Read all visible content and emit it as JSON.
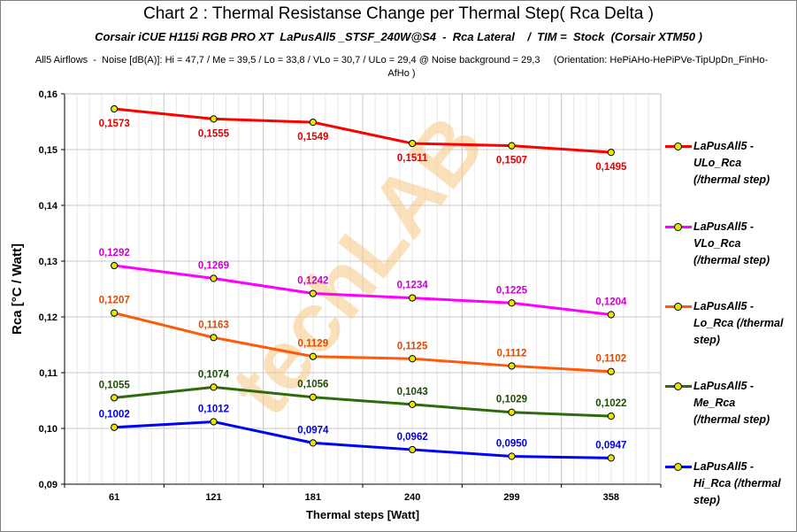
{
  "title": "Chart 2 :  Thermal Resistanse Change per Thermal Step( Rca  Delta )",
  "subtitle": "Corsair iCUE H115i RGB PRO XT  LaPusAll5 _STSF_240W@S4  -  Rca Lateral    /  TIM =  Stock  (Corsair XTM50 )",
  "note": "All5 Airflows  -  Noise [dB(A)]: Hi = 47,7 / Me = 39,5 / Lo = 33,8 / VLo = 30,7 / ULo = 29,4 @ Noise background = 29,3     (Orientation: HePiAHo-HePiPVe-TipUpDn_FinHo-AfHo )",
  "watermark": "techLAB",
  "colors": {
    "marker_fill": "#e6e600",
    "grid": "#d9d9d9"
  },
  "chart_data": {
    "type": "line",
    "xlabel": "Thermal steps  [Watt]",
    "ylabel": "Rca  [°C / Watt]",
    "ylim": [
      0.09,
      0.16
    ],
    "yticks": [
      "0,09",
      "0,10",
      "0,11",
      "0,12",
      "0,13",
      "0,14",
      "0,15",
      "0,16"
    ],
    "ytick_values": [
      0.09,
      0.1,
      0.11,
      0.12,
      0.13,
      0.14,
      0.15,
      0.16
    ],
    "categories": [
      "61",
      "121",
      "181",
      "240",
      "299",
      "358"
    ],
    "series": [
      {
        "name": "LaPusAll5 - ULo_Rca (/thermal step)",
        "legend_lines": [
          "LaPusAll5 -",
          "ULo_Rca",
          "(/thermal step)"
        ],
        "color": "#ff0000",
        "label_color": "#e00000",
        "values": [
          0.1573,
          0.1555,
          0.1549,
          0.1511,
          0.1507,
          0.1495
        ],
        "labels": [
          "0,1573",
          "0,1555",
          "0,1549",
          "0,1511",
          "0,1507",
          "0,1495"
        ],
        "label_pos": "below"
      },
      {
        "name": "LaPusAll5 - VLo_Rca (/thermal step)",
        "legend_lines": [
          "LaPusAll5 -",
          "VLo_Rca",
          "(/thermal step)"
        ],
        "color": "#ff00ff",
        "label_color": "#d000d0",
        "values": [
          0.1292,
          0.1269,
          0.1242,
          0.1234,
          0.1225,
          0.1204
        ],
        "labels": [
          "0,1292",
          "0,1269",
          "0,1242",
          "0,1234",
          "0,1225",
          "0,1204"
        ],
        "label_pos": "above"
      },
      {
        "name": "LaPusAll5 - Lo_Rca (/thermal step)",
        "legend_lines": [
          "LaPusAll5 -",
          "Lo_Rca (/thermal",
          "step)"
        ],
        "color": "#ff5a0a",
        "label_color": "#e04a00",
        "values": [
          0.1207,
          0.1163,
          0.1129,
          0.1125,
          0.1112,
          0.1102
        ],
        "labels": [
          "0,1207",
          "0,1163",
          "0,1129",
          "0,1125",
          "0,1112",
          "0,1102"
        ],
        "label_pos": "above"
      },
      {
        "name": "LaPusAll5 - Me_Rca (/thermal step)",
        "legend_lines": [
          "LaPusAll5 -",
          "Me_Rca",
          "(/thermal step)"
        ],
        "color": "#2e6b0c",
        "label_color": "#1f4d08",
        "values": [
          0.1055,
          0.1074,
          0.1056,
          0.1043,
          0.1029,
          0.1022
        ],
        "labels": [
          "0,1055",
          "0,1074",
          "0,1056",
          "0,1043",
          "0,1029",
          "0,1022"
        ],
        "label_pos": "above"
      },
      {
        "name": "LaPusAll5 - Hi_Rca (/thermal step)",
        "legend_lines": [
          "LaPusAll5 -",
          "Hi_Rca (/thermal",
          "step)"
        ],
        "color": "#0000ff",
        "label_color": "#0000e0",
        "values": [
          0.1002,
          0.1012,
          0.0974,
          0.0962,
          0.095,
          0.0947
        ],
        "labels": [
          "0,1002",
          "0,1012",
          "0,0974",
          "0,0962",
          "0,0950",
          "0,0947"
        ],
        "label_pos": "above"
      }
    ]
  }
}
